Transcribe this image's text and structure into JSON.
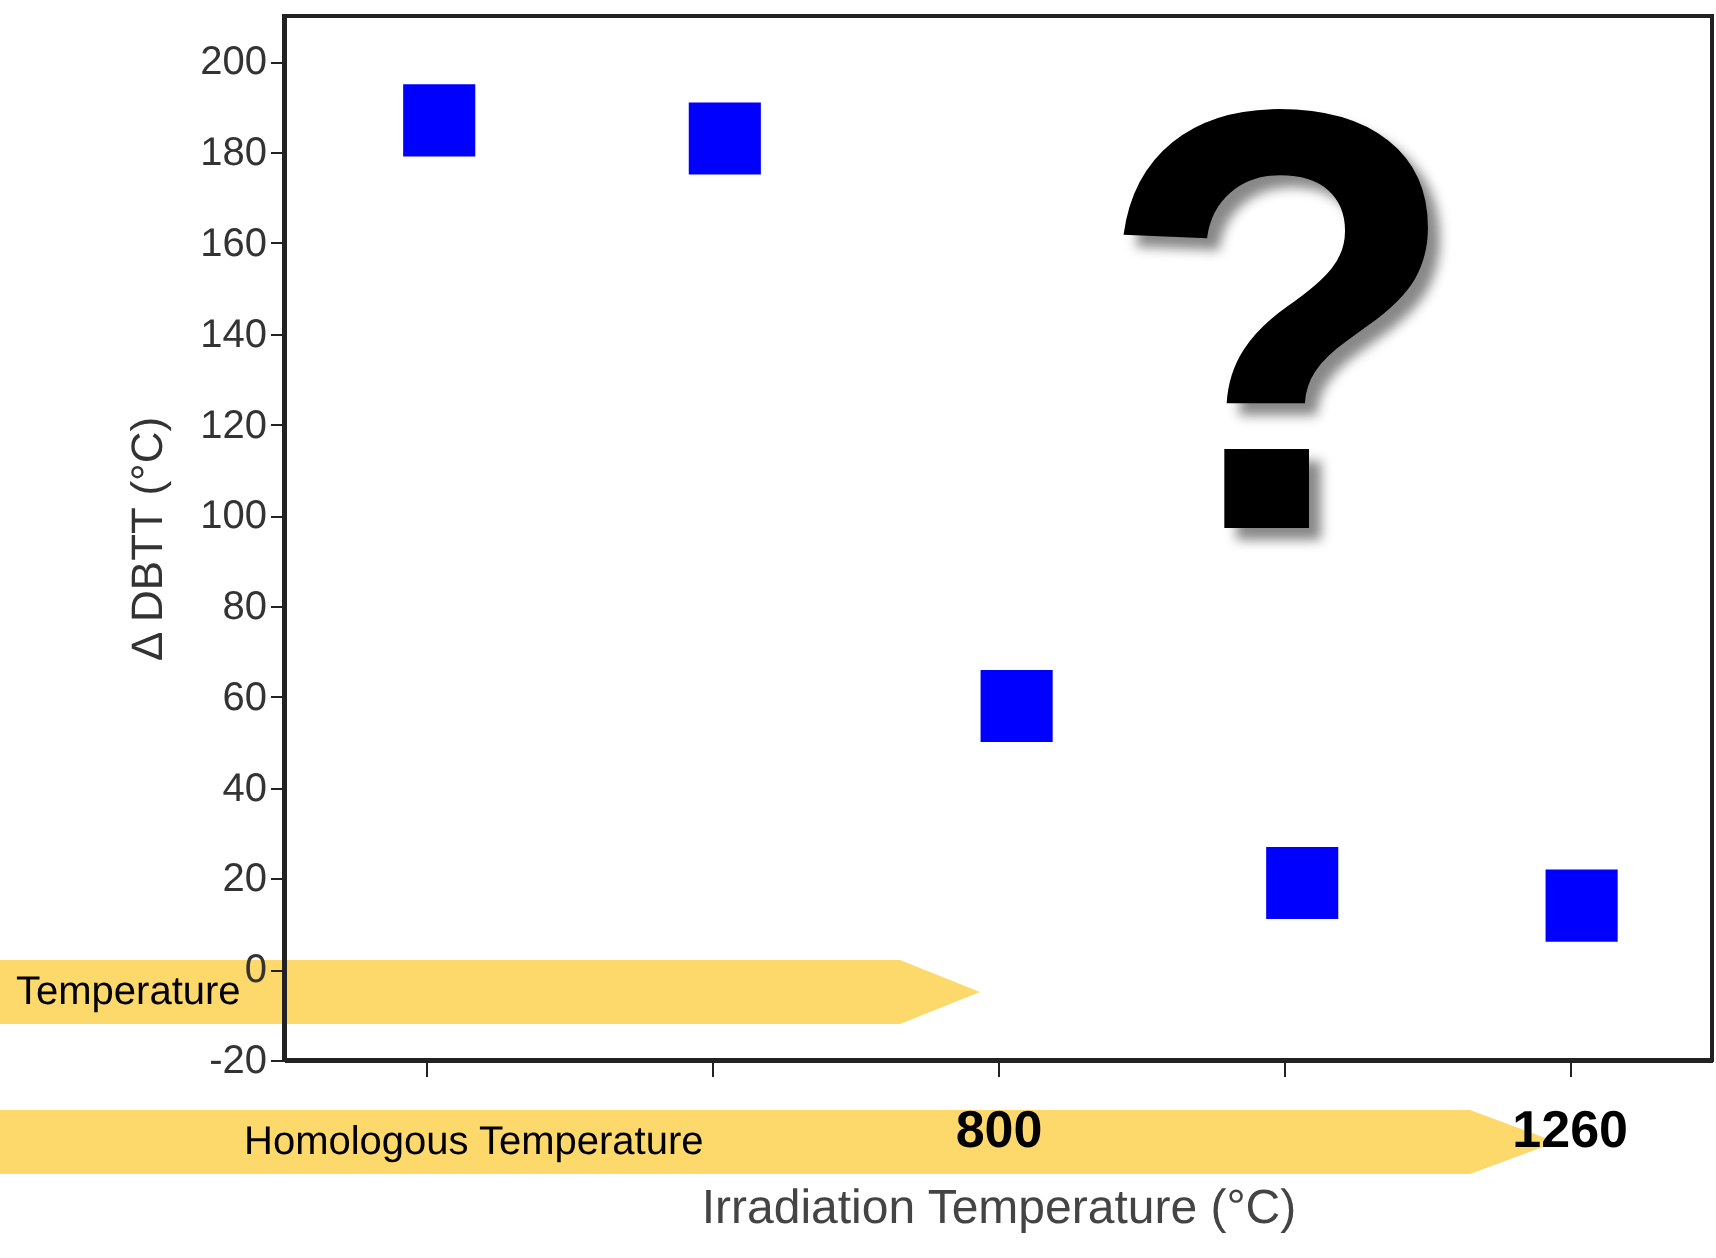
{
  "chart_data": {
    "type": "scatter",
    "xlabel": "Irradiation Temperature (°C)",
    "ylabel": "Δ DBTT (°C)",
    "x": [
      350,
      580,
      815,
      1045,
      1270
    ],
    "values": [
      187,
      183,
      58,
      19,
      14
    ],
    "color": "#0000ff",
    "marker": "square",
    "xlim": [
      225,
      1375
    ],
    "ylim": [
      -20,
      210
    ],
    "xticks": [
      {
        "value": 340,
        "label": null
      },
      {
        "value": 570,
        "label": null
      },
      800,
      {
        "value": 1030,
        "label": null
      },
      1260
    ],
    "yticks": [
      -20,
      0,
      20,
      40,
      60,
      80,
      100,
      120,
      140,
      160,
      180,
      200
    ],
    "annotations": [
      "Temperature",
      "Homologous Temperature",
      "?"
    ]
  }
}
